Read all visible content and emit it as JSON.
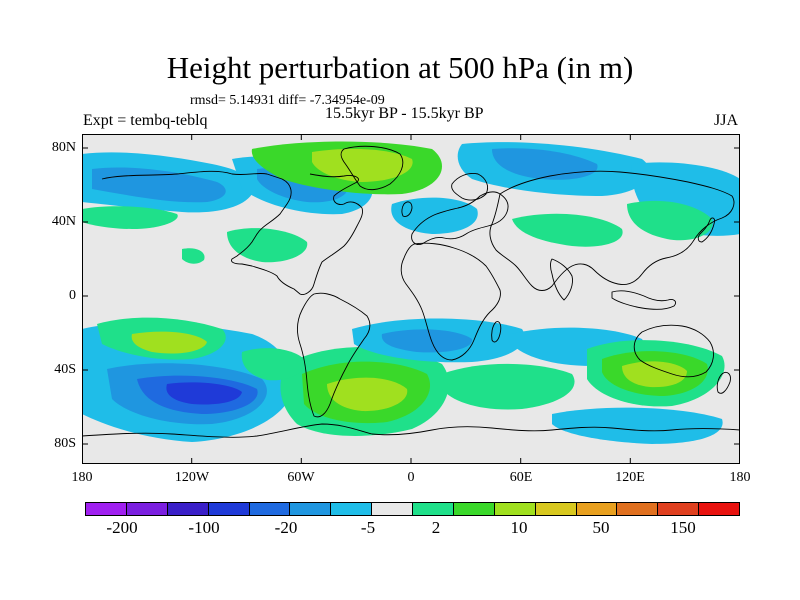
{
  "header": {
    "title": "Height perturbation at 500 hPa (in m)",
    "stats": "rmsd= 5.14931 diff= -7.34954e-09",
    "subtitle": "15.5kyr BP - 15.5kyr BP",
    "left_label": "Expt = tembq-teblq",
    "right_label": "JJA"
  },
  "axes": {
    "lat_labels": [
      "80N",
      "40N",
      "0",
      "40S",
      "80S"
    ],
    "lon_labels": [
      "180",
      "120W",
      "60W",
      "0",
      "60E",
      "120E",
      "180"
    ]
  },
  "colorbar": {
    "colors": [
      "#a020f0",
      "#7b1fe0",
      "#3a1fc8",
      "#1f3ad8",
      "#1f6ae0",
      "#1f96e0",
      "#1fbde8",
      "#e8e8e8",
      "#1fe08a",
      "#3ad82a",
      "#a0e01f",
      "#d8c81f",
      "#e8a01f",
      "#e0701f",
      "#e0401f",
      "#e8120f"
    ],
    "labels": [
      "-200",
      "-100",
      "-20",
      "-5",
      "2",
      "10",
      "50",
      "150"
    ]
  },
  "map_data": {
    "background_color": "#e8e8e8",
    "projection": "cylindrical equidistant",
    "lon_range": [
      -180,
      180
    ],
    "lat_range": [
      -90,
      90
    ]
  }
}
